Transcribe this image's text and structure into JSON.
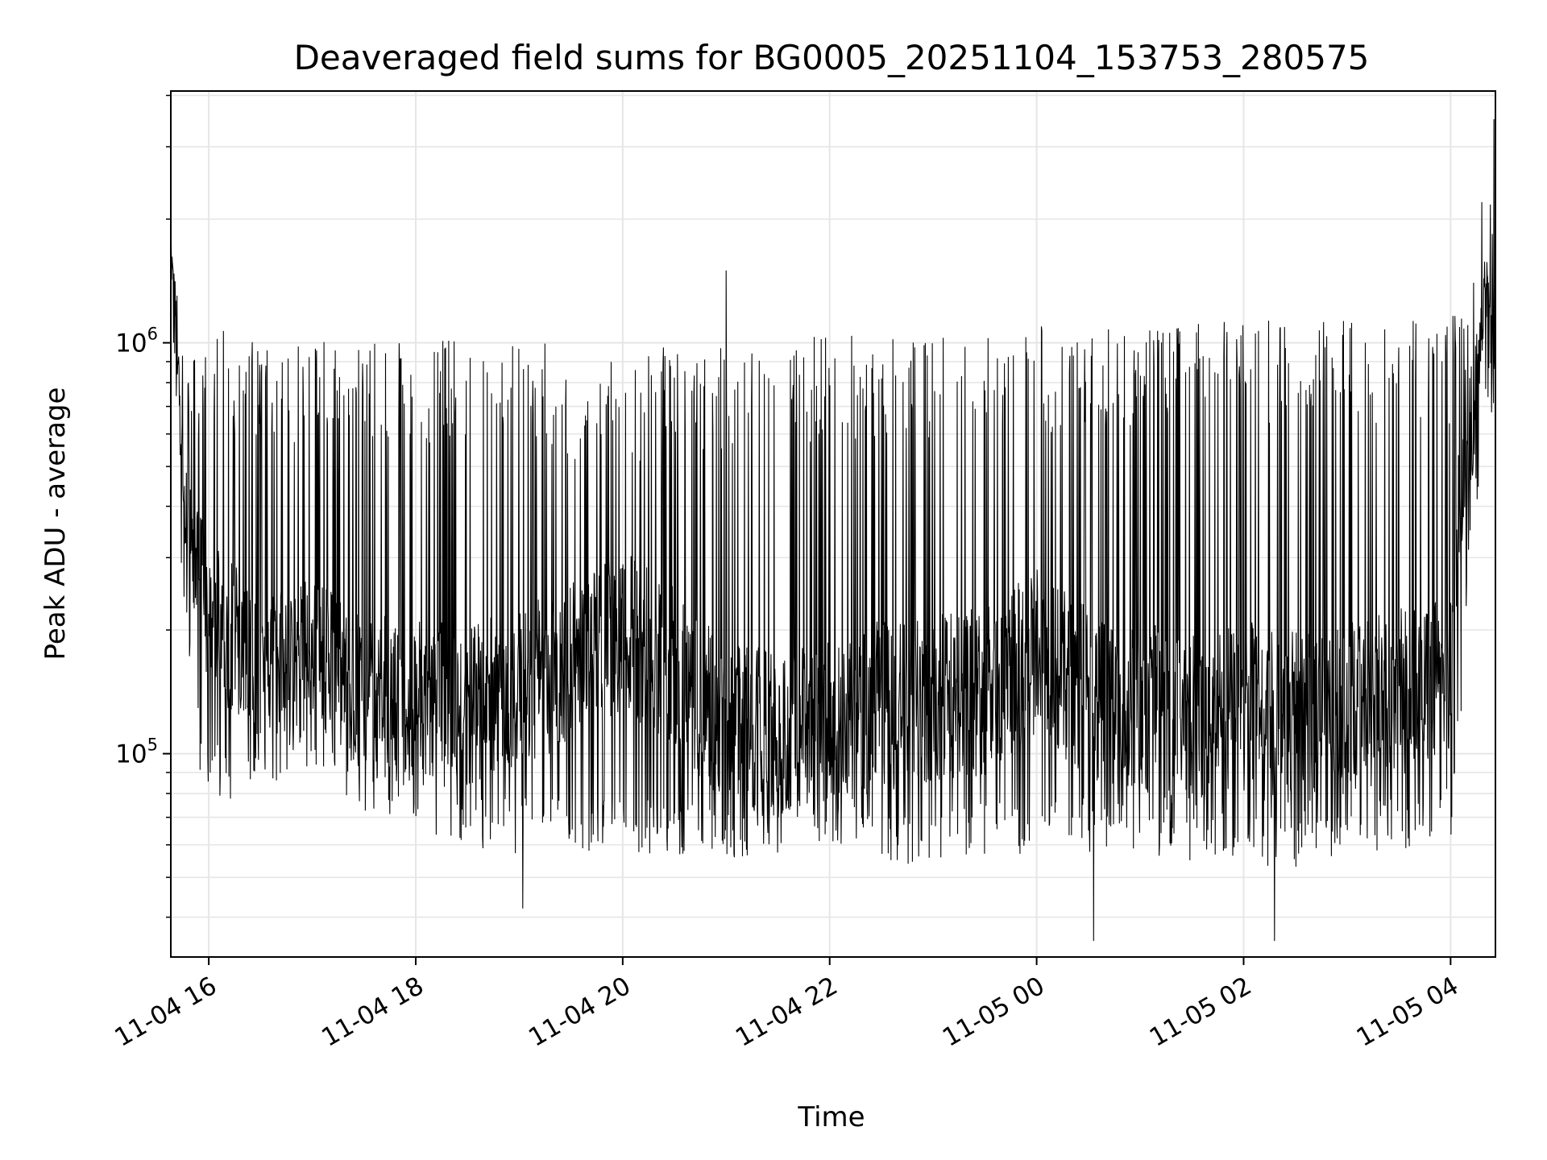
{
  "chart_data": {
    "type": "line",
    "title": "Deaveraged field sums for BG0005_20251104_153753_280575",
    "xlabel": "Time",
    "ylabel": "Peak ADU - average",
    "x_start": "2025-11-04 15:38",
    "x_end": "2025-11-05 04:26",
    "xlim": [
      "2025-11-04 15:38",
      "2025-11-05 04:26"
    ],
    "ylim": [
      32000,
      4100000
    ],
    "yscale": "log",
    "grid": true,
    "line_color": "#000000",
    "grid_color": "#e6e6e6",
    "x_ticks": [
      {
        "value": "2025-11-04 16:00",
        "label": "11-04 16"
      },
      {
        "value": "2025-11-04 18:00",
        "label": "11-04 18"
      },
      {
        "value": "2025-11-04 20:00",
        "label": "11-04 20"
      },
      {
        "value": "2025-11-04 22:00",
        "label": "11-04 22"
      },
      {
        "value": "2025-11-05 00:00",
        "label": "11-05 00"
      },
      {
        "value": "2025-11-05 02:00",
        "label": "11-05 02"
      },
      {
        "value": "2025-11-05 04:00",
        "label": "11-05 04"
      }
    ],
    "y_ticks": [
      {
        "value": 100000,
        "base": "10",
        "exp": "5"
      },
      {
        "value": 1000000,
        "base": "10",
        "exp": "6"
      }
    ],
    "series": [
      {
        "x": [
          "2025-11-04 15:38",
          "2025-11-04 15:40",
          "2025-11-04 15:43",
          "2025-11-04 15:46",
          "2025-11-04 15:50",
          "2025-11-04 15:55",
          "2025-11-04 16:00",
          "2025-11-04 16:15",
          "2025-11-04 16:30",
          "2025-11-04 17:00",
          "2025-11-04 17:30",
          "2025-11-04 18:00",
          "2025-11-04 18:30",
          "2025-11-04 19:00",
          "2025-11-04 19:30",
          "2025-11-04 20:00",
          "2025-11-04 20:30",
          "2025-11-04 21:00",
          "2025-11-04 21:30",
          "2025-11-04 22:00",
          "2025-11-04 22:30",
          "2025-11-04 23:00",
          "2025-11-04 23:30",
          "2025-11-05 00:00",
          "2025-11-05 00:30",
          "2025-11-05 01:00",
          "2025-11-05 01:30",
          "2025-11-05 02:00",
          "2025-11-05 02:30",
          "2025-11-05 03:00",
          "2025-11-05 03:30",
          "2025-11-05 04:00",
          "2025-11-05 04:05",
          "2025-11-05 04:10",
          "2025-11-05 04:15",
          "2025-11-05 04:20",
          "2025-11-05 04:26"
        ],
        "baseline": [
          1800000,
          1400000,
          700000,
          420000,
          320000,
          260000,
          220000,
          190000,
          160000,
          180000,
          140000,
          140000,
          130000,
          140000,
          170000,
          200000,
          160000,
          120000,
          110000,
          120000,
          130000,
          140000,
          140000,
          180000,
          140000,
          130000,
          120000,
          130000,
          120000,
          130000,
          140000,
          150000,
          400000,
          500000,
          700000,
          1400000,
          900000
        ],
        "upper": [
          1900000,
          1800000,
          1000000,
          900000,
          850000,
          1100000,
          1100000,
          1050000,
          1000000,
          1050000,
          1000000,
          1050000,
          1000000,
          1050000,
          950000,
          900000,
          1000000,
          1000000,
          1000000,
          1050000,
          1050000,
          1050000,
          1050000,
          1100000,
          1100000,
          1100000,
          1150000,
          1150000,
          1150000,
          1150000,
          1150000,
          1150000,
          1200000,
          1300000,
          1500000,
          2100000,
          3300000
        ],
        "lower": [
          1500000,
          900000,
          300000,
          200000,
          140000,
          90000,
          85000,
          80000,
          90000,
          90000,
          75000,
          70000,
          60000,
          60000,
          60000,
          60000,
          60000,
          55000,
          60000,
          65000,
          55000,
          55000,
          60000,
          60000,
          60000,
          60000,
          55000,
          55000,
          55000,
          60000,
          60000,
          65000,
          100000,
          250000,
          400000,
          700000,
          700000
        ],
        "spikes": [
          {
            "x": "2025-11-04 21:00",
            "y": 1500000
          },
          {
            "x": "2025-11-04 19:02",
            "y": 42000
          },
          {
            "x": "2025-11-05 00:33",
            "y": 35000
          },
          {
            "x": "2025-11-05 02:18",
            "y": 35000
          },
          {
            "x": "2025-11-05 04:18",
            "y": 2200000
          },
          {
            "x": "2025-11-05 04:25",
            "y": 3500000
          }
        ]
      }
    ]
  }
}
